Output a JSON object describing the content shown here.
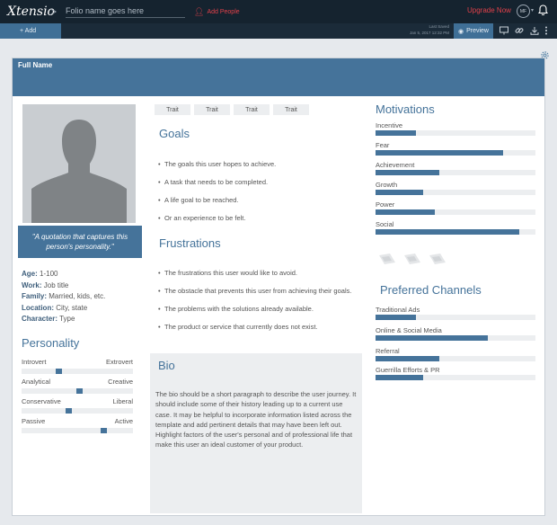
{
  "app": {
    "logo": "Xtensio",
    "breadcrumb_sep": ">",
    "folio_placeholder": "Folio name goes here",
    "add_people": "Add People",
    "upgrade": "Upgrade Now",
    "user_initials": "MF"
  },
  "toolbar": {
    "add_label": "+ Add",
    "last_saved_label": "Last Saved",
    "last_saved_time": "Jan 5, 2017 12:32 PM",
    "preview_label": "Preview"
  },
  "persona": {
    "full_name": "Full Name",
    "quote": "\"A quotation that captures this person's personality.\"",
    "demographics": [
      {
        "label": "Age:",
        "value": "1-100"
      },
      {
        "label": "Work:",
        "value": "Job title"
      },
      {
        "label": "Family:",
        "value": "Married, kids, etc."
      },
      {
        "label": "Location:",
        "value": "City, state"
      },
      {
        "label": "Character:",
        "value": "Type"
      }
    ],
    "traits": [
      "Trait",
      "Trait",
      "Trait",
      "Trait"
    ]
  },
  "personality": {
    "title": "Personality",
    "sliders": [
      {
        "left": "Introvert",
        "right": "Extrovert",
        "value": 0.33
      },
      {
        "left": "Analytical",
        "right": "Creative",
        "value": 0.52
      },
      {
        "left": "Conservative",
        "right": "Liberal",
        "value": 0.42
      },
      {
        "left": "Passive",
        "right": "Active",
        "value": 0.73
      }
    ]
  },
  "goals": {
    "title": "Goals",
    "items": [
      "The goals this user hopes to achieve.",
      "A task that needs to be completed.",
      "A life goal to be reached.",
      "Or an experience to be felt."
    ]
  },
  "frustrations": {
    "title": "Frustrations",
    "items": [
      "The frustrations this user would like to avoid.",
      "The obstacle that prevents this user from achieving their goals.",
      "The problems with the solutions already available.",
      "The product or service that currently does not exist."
    ]
  },
  "bio": {
    "title": "Bio",
    "text": "The bio should be a short paragraph to describe the user journey. It should include some of their history leading up to a current use case. It may be helpful to incorporate information listed across the template and add pertinent details that may have been left out. Highlight factors of the user's personal and of professional life that make this user an ideal customer of your product."
  },
  "motivations": {
    "title": "Motivations",
    "items": [
      {
        "label": "Incentive",
        "value": 0.25
      },
      {
        "label": "Fear",
        "value": 0.8
      },
      {
        "label": "Achievement",
        "value": 0.4
      },
      {
        "label": "Growth",
        "value": 0.3
      },
      {
        "label": "Power",
        "value": 0.37
      },
      {
        "label": "Social",
        "value": 0.9
      }
    ]
  },
  "channels": {
    "title": "Preferred Channels",
    "items": [
      {
        "label": "Traditional Ads",
        "value": 0.25
      },
      {
        "label": "Online & Social Media",
        "value": 0.7
      },
      {
        "label": "Referral",
        "value": 0.4
      },
      {
        "label": "Guerrilla Efforts & PR",
        "value": 0.3
      }
    ]
  },
  "colors": {
    "accent": "#45739a",
    "topbar": "#15232f",
    "alert": "#e2414a",
    "track": "#eceef0"
  }
}
